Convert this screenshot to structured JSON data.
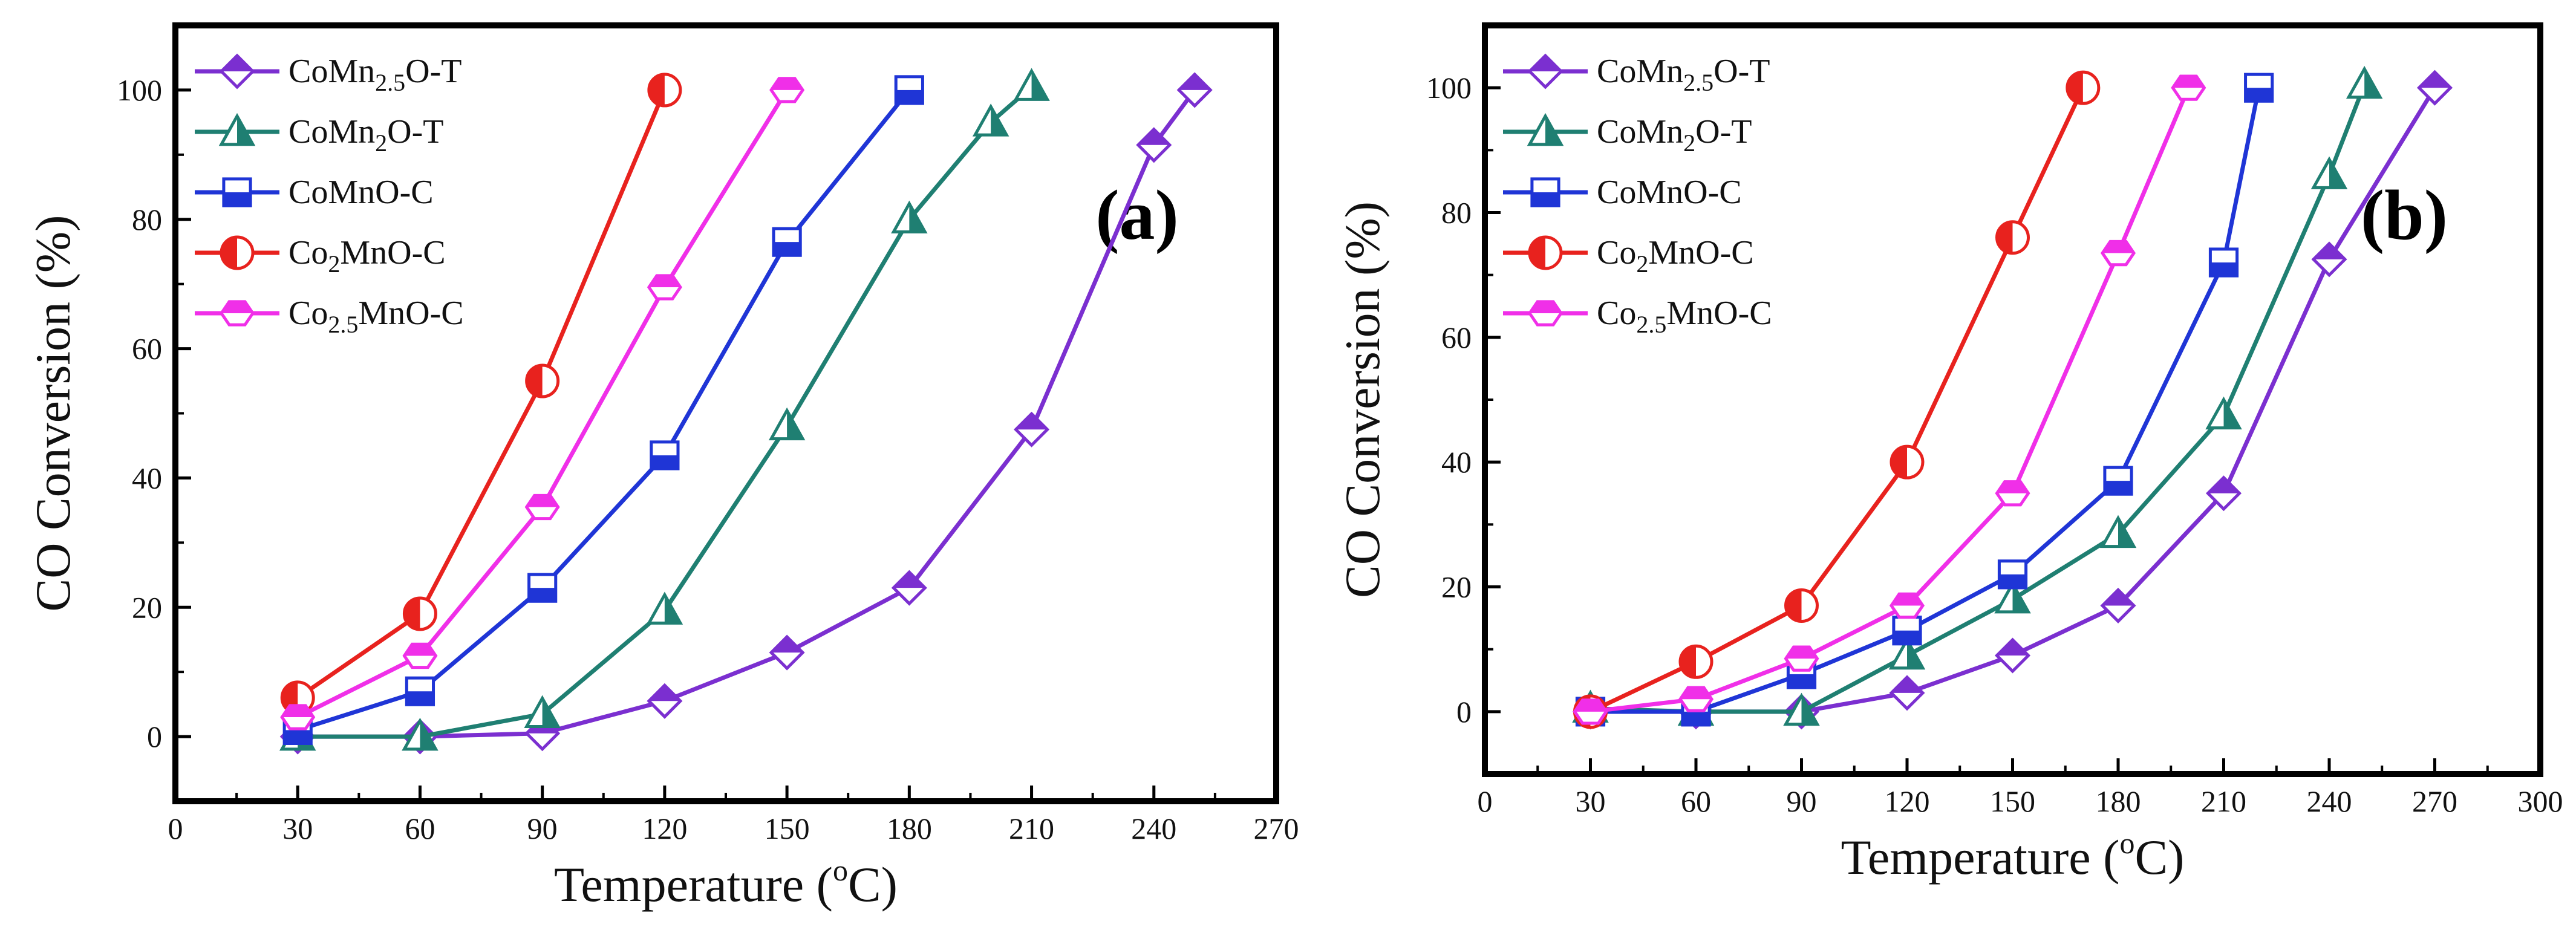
{
  "chart_data": [
    {
      "type": "line",
      "panel_label": "(a)",
      "xlabel": "Temperature (oC)",
      "ylabel": "CO Conversion (%)",
      "xlim": [
        0,
        270
      ],
      "ylim": [
        -10,
        110
      ],
      "xticks": [
        0,
        30,
        60,
        90,
        120,
        150,
        180,
        210,
        240,
        270
      ],
      "yticks": [
        0,
        20,
        40,
        60,
        80,
        100
      ],
      "series": [
        {
          "name": "CoMn2.5O-T",
          "label_parts": {
            "base": "CoMn",
            "sub": "2.5",
            "rest": "O-T"
          },
          "color": "#7B2FD0",
          "marker": "diamond",
          "x": [
            30,
            60,
            90,
            120,
            150,
            180,
            210,
            240,
            250
          ],
          "y": [
            0,
            0,
            0.5,
            5.5,
            13,
            23,
            47.5,
            91.5,
            100
          ]
        },
        {
          "name": "CoMn2O-T",
          "label_parts": {
            "base": "CoMn",
            "sub": "2",
            "rest": "O-T"
          },
          "color": "#1F7F72",
          "marker": "triangle",
          "x": [
            30,
            60,
            90,
            120,
            150,
            180,
            200,
            210
          ],
          "y": [
            0,
            0,
            3.5,
            19.5,
            48,
            80,
            95,
            100.5
          ]
        },
        {
          "name": "CoMnO-C",
          "label_parts": {
            "base": "CoMnO-C",
            "sub": "",
            "rest": ""
          },
          "color": "#1F35D6",
          "marker": "square",
          "x": [
            30,
            60,
            90,
            120,
            150,
            180
          ],
          "y": [
            1,
            7,
            23,
            43.5,
            76.5,
            100
          ]
        },
        {
          "name": "Co2MnO-C",
          "label_parts": {
            "base": "Co",
            "sub": "2",
            "rest": "MnO-C"
          },
          "color": "#E8221E",
          "marker": "circle",
          "x": [
            30,
            60,
            90,
            120
          ],
          "y": [
            6,
            19,
            55,
            100
          ]
        },
        {
          "name": "Co2.5MnO-C",
          "label_parts": {
            "base": "Co",
            "sub": "2.5",
            "rest": "MnO-C"
          },
          "color": "#F02FE8",
          "marker": "hexagon",
          "x": [
            30,
            60,
            90,
            120,
            150
          ],
          "y": [
            3,
            12.5,
            35.5,
            69.5,
            100
          ]
        }
      ]
    },
    {
      "type": "line",
      "panel_label": "(b)",
      "xlabel": "Temperature (oC)",
      "ylabel": "CO Conversion (%)",
      "xlim": [
        0,
        300
      ],
      "ylim": [
        -10,
        110
      ],
      "xticks": [
        0,
        30,
        60,
        90,
        120,
        150,
        180,
        210,
        240,
        270,
        300
      ],
      "yticks": [
        0,
        20,
        40,
        60,
        80,
        100
      ],
      "series": [
        {
          "name": "CoMn2.5O-T",
          "label_parts": {
            "base": "CoMn",
            "sub": "2.5",
            "rest": "O-T"
          },
          "color": "#7B2FD0",
          "marker": "diamond",
          "x": [
            30,
            60,
            90,
            120,
            150,
            180,
            210,
            240,
            270
          ],
          "y": [
            0,
            0,
            0,
            3,
            9,
            17,
            35,
            72.5,
            100
          ]
        },
        {
          "name": "CoMn2O-T",
          "label_parts": {
            "base": "CoMn",
            "sub": "2",
            "rest": "O-T"
          },
          "color": "#1F7F72",
          "marker": "triangle",
          "x": [
            30,
            60,
            90,
            120,
            150,
            180,
            210,
            240,
            250
          ],
          "y": [
            0.5,
            0,
            0,
            9,
            18,
            28.5,
            47.5,
            86,
            100.5
          ]
        },
        {
          "name": "CoMnO-C",
          "label_parts": {
            "base": "CoMnO-C",
            "sub": "",
            "rest": ""
          },
          "color": "#1F35D6",
          "marker": "square",
          "x": [
            30,
            60,
            90,
            120,
            150,
            180,
            210,
            220
          ],
          "y": [
            0,
            0,
            6,
            13,
            22,
            37,
            72,
            100
          ]
        },
        {
          "name": "Co2MnO-C",
          "label_parts": {
            "base": "Co",
            "sub": "2",
            "rest": "MnO-C"
          },
          "color": "#E8221E",
          "marker": "circle",
          "x": [
            30,
            60,
            90,
            120,
            150,
            170
          ],
          "y": [
            0,
            8,
            17,
            40,
            76,
            100
          ]
        },
        {
          "name": "Co2.5MnO-C",
          "label_parts": {
            "base": "Co",
            "sub": "2.5",
            "rest": "MnO-C"
          },
          "color": "#F02FE8",
          "marker": "hexagon",
          "x": [
            30,
            60,
            90,
            120,
            150,
            180,
            200
          ],
          "y": [
            0,
            2,
            8.5,
            17,
            35,
            73.5,
            100
          ]
        }
      ]
    }
  ]
}
